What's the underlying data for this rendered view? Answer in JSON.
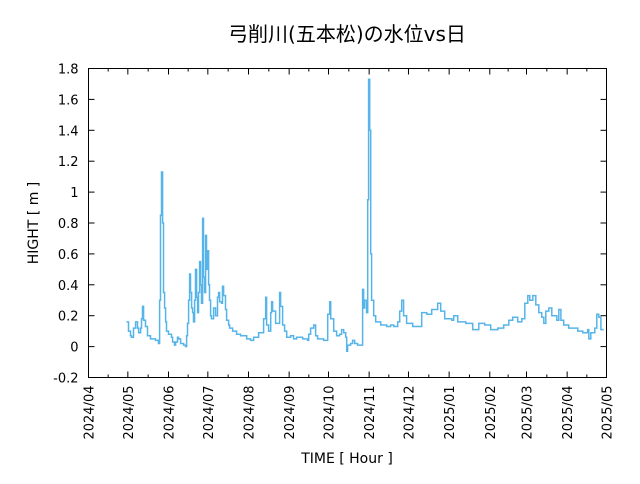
{
  "chart_data": {
    "type": "line",
    "title": "弓削川(五本松)の水位vs日",
    "xlabel": "TIME [ Hour ]",
    "ylabel": "HIGHT [ m ]",
    "ylim": [
      -0.2,
      1.8
    ],
    "yticks": [
      "-0.2",
      "0",
      "0.2",
      "0.4",
      "0.6",
      "0.8",
      "1",
      "1.2",
      "1.4",
      "1.6",
      "1.8"
    ],
    "ytick_values": [
      -0.2,
      0,
      0.2,
      0.4,
      0.6,
      0.8,
      1,
      1.2,
      1.4,
      1.6,
      1.8
    ],
    "x_unit": "days since 2024/04/01",
    "xlim": [
      0,
      395
    ],
    "xticks": [
      "2024/04",
      "2024/05",
      "2024/06",
      "2024/07",
      "2024/08",
      "2024/09",
      "2024/10",
      "2024/11",
      "2024/12",
      "2025/01",
      "2025/02",
      "2025/03",
      "2025/04",
      "2025/05"
    ],
    "xtick_values": [
      0,
      30,
      61,
      91,
      122,
      153,
      183,
      214,
      244,
      275,
      306,
      334,
      365,
      395
    ],
    "grid": false,
    "series": [
      {
        "name": "水位",
        "color": "#56b4e9",
        "x": [
          29.0,
          30.5,
          32.0,
          32.8,
          34.3,
          35.9,
          37.4,
          38.2,
          39.7,
          40.4,
          41.2,
          42.0,
          43.5,
          45.0,
          47.3,
          51.1,
          53.4,
          54.2,
          54.9,
          55.7,
          56.5,
          57.2,
          58.0,
          58.8,
          59.5,
          61.0,
          63.3,
          64.1,
          65.6,
          66.4,
          67.9,
          68.7,
          70.2,
          72.5,
          74.0,
          74.8,
          75.5,
          76.3,
          77.1,
          77.8,
          78.6,
          79.4,
          80.1,
          80.9,
          81.6,
          82.4,
          83.2,
          83.9,
          84.7,
          85.5,
          86.2,
          87.0,
          87.7,
          88.5,
          89.3,
          90.0,
          90.8,
          91.6,
          92.3,
          93.1,
          93.8,
          95.4,
          96.9,
          98.4,
          99.2,
          100.0,
          101.5,
          102.2,
          103.0,
          104.5,
          105.3,
          106.8,
          107.6,
          109.9,
          112.9,
          116.0,
          120.6,
          123.6,
          125.9,
          129.7,
          133.5,
          135.1,
          135.8,
          137.3,
          138.9,
          139.6,
          140.4,
          142.7,
          145.7,
          146.5,
          148.0,
          149.5,
          151.1,
          154.1,
          156.4,
          158.7,
          163.3,
          167.1,
          167.9,
          169.4,
          171.7,
          173.2,
          174.7,
          179.3,
          182.4,
          183.9,
          184.7,
          187.0,
          189.2,
          191.5,
          193.0,
          194.6,
          196.1,
          196.9,
          197.6,
          199.9,
          201.4,
          203.0,
          205.2,
          208.3,
          209.0,
          209.8,
          210.6,
          212.1,
          212.9,
          213.6,
          214.4,
          215.2,
          215.9,
          217.5,
          219.0,
          222.8,
          227.4,
          230.4,
          232.7,
          235.8,
          237.3,
          238.8,
          240.3,
          242.6,
          247.2,
          250.3,
          254.1,
          257.9,
          261.7,
          266.3,
          268.6,
          271.6,
          277.0,
          278.5,
          281.5,
          287.7,
          293.0,
          297.6,
          302.1,
          306.7,
          312.1,
          316.6,
          320.5,
          323.5,
          327.3,
          330.4,
          332.7,
          335.0,
          336.5,
          338.8,
          341.1,
          343.4,
          345.6,
          347.2,
          348.7,
          351.0,
          353.3,
          357.1,
          358.6,
          360.2,
          362.4,
          366.2,
          370.1,
          373.1,
          376.9,
          380.7,
          381.5,
          383.0,
          386.1,
          387.6,
          389.1,
          390.7,
          392.9
        ],
        "y": [
          0.16,
          0.1,
          0.07,
          0.06,
          0.12,
          0.16,
          0.12,
          0.09,
          0.12,
          0.18,
          0.26,
          0.17,
          0.13,
          0.07,
          0.05,
          0.04,
          0.02,
          0.3,
          0.85,
          1.13,
          0.8,
          0.35,
          0.25,
          0.16,
          0.1,
          0.08,
          0.06,
          0.03,
          0.01,
          0.03,
          0.06,
          0.05,
          0.02,
          0.01,
          0.0,
          0.07,
          0.15,
          0.3,
          0.47,
          0.35,
          0.25,
          0.22,
          0.16,
          0.3,
          0.5,
          0.32,
          0.22,
          0.35,
          0.55,
          0.4,
          0.28,
          0.83,
          0.45,
          0.35,
          0.72,
          0.5,
          0.62,
          0.4,
          0.3,
          0.2,
          0.18,
          0.25,
          0.2,
          0.32,
          0.35,
          0.29,
          0.28,
          0.39,
          0.33,
          0.24,
          0.17,
          0.14,
          0.12,
          0.1,
          0.08,
          0.07,
          0.05,
          0.04,
          0.06,
          0.09,
          0.18,
          0.32,
          0.14,
          0.1,
          0.22,
          0.29,
          0.23,
          0.15,
          0.35,
          0.26,
          0.14,
          0.1,
          0.06,
          0.07,
          0.05,
          0.06,
          0.05,
          0.04,
          0.08,
          0.12,
          0.14,
          0.07,
          0.05,
          0.04,
          0.21,
          0.29,
          0.18,
          0.1,
          0.07,
          0.08,
          0.11,
          0.09,
          0.06,
          -0.03,
          0.01,
          0.02,
          0.04,
          0.02,
          0.01,
          0.01,
          0.37,
          0.25,
          0.3,
          0.22,
          0.95,
          1.73,
          1.4,
          0.6,
          0.3,
          0.2,
          0.16,
          0.14,
          0.13,
          0.14,
          0.13,
          0.16,
          0.23,
          0.3,
          0.2,
          0.15,
          0.13,
          0.13,
          0.22,
          0.21,
          0.24,
          0.28,
          0.23,
          0.18,
          0.17,
          0.2,
          0.16,
          0.15,
          0.11,
          0.15,
          0.14,
          0.11,
          0.12,
          0.14,
          0.17,
          0.19,
          0.16,
          0.18,
          0.28,
          0.33,
          0.3,
          0.33,
          0.27,
          0.22,
          0.19,
          0.15,
          0.23,
          0.25,
          0.2,
          0.17,
          0.24,
          0.17,
          0.14,
          0.12,
          0.12,
          0.1,
          0.09,
          0.11,
          0.05,
          0.09,
          0.12,
          0.21,
          0.19,
          0.11,
          0.11
        ]
      }
    ]
  }
}
